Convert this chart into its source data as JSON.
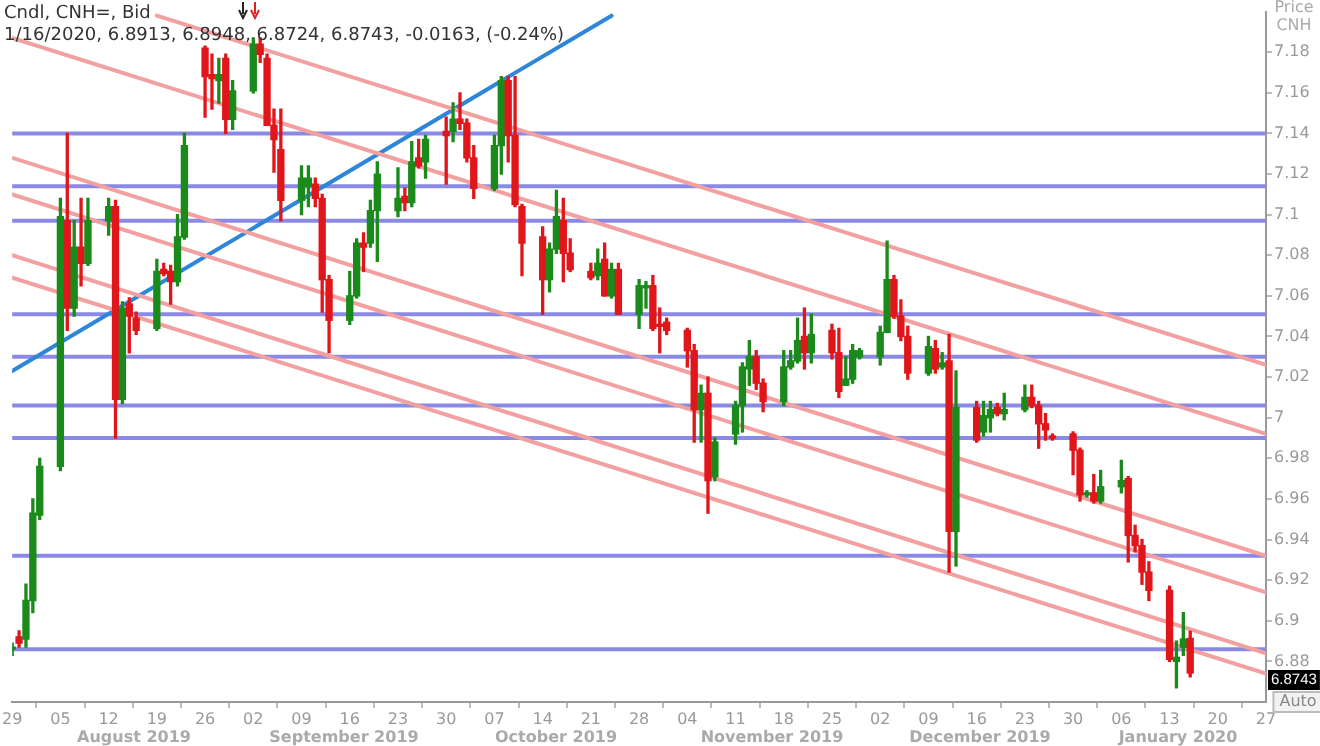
{
  "chart_data": {
    "type": "candlestick",
    "title": "Cndl, CNH=, Bid",
    "subtitle": "1/16/2020, 6.8913, 6.8948, 6.8724, 6.8743, -0.0163, (-0.24%)",
    "ylabel": "Price CNH",
    "x": [
      "2019-07-29",
      "2019-07-30",
      "2019-07-31",
      "2019-08-01",
      "2019-08-02",
      "2019-08-05",
      "2019-08-06",
      "2019-08-07",
      "2019-08-08",
      "2019-08-09",
      "2019-08-12",
      "2019-08-13",
      "2019-08-14",
      "2019-08-15",
      "2019-08-16",
      "2019-08-19",
      "2019-08-20",
      "2019-08-21",
      "2019-08-22",
      "2019-08-23",
      "2019-08-26",
      "2019-08-27",
      "2019-08-28",
      "2019-08-29",
      "2019-08-30",
      "2019-09-02",
      "2019-09-03",
      "2019-09-04",
      "2019-09-05",
      "2019-09-06",
      "2019-09-09",
      "2019-09-10",
      "2019-09-11",
      "2019-09-12",
      "2019-09-13",
      "2019-09-16",
      "2019-09-17",
      "2019-09-18",
      "2019-09-19",
      "2019-09-20",
      "2019-09-23",
      "2019-09-24",
      "2019-09-25",
      "2019-09-26",
      "2019-09-27",
      "2019-09-30",
      "2019-10-01",
      "2019-10-02",
      "2019-10-03",
      "2019-10-04",
      "2019-10-07",
      "2019-10-08",
      "2019-10-09",
      "2019-10-10",
      "2019-10-11",
      "2019-10-14",
      "2019-10-15",
      "2019-10-16",
      "2019-10-17",
      "2019-10-18",
      "2019-10-21",
      "2019-10-22",
      "2019-10-23",
      "2019-10-24",
      "2019-10-25",
      "2019-10-28",
      "2019-10-29",
      "2019-10-30",
      "2019-10-31",
      "2019-11-01",
      "2019-11-04",
      "2019-11-05",
      "2019-11-06",
      "2019-11-07",
      "2019-11-08",
      "2019-11-11",
      "2019-11-12",
      "2019-11-13",
      "2019-11-14",
      "2019-11-15",
      "2019-11-18",
      "2019-11-19",
      "2019-11-20",
      "2019-11-21",
      "2019-11-22",
      "2019-11-25",
      "2019-11-26",
      "2019-11-27",
      "2019-11-28",
      "2019-11-29",
      "2019-12-02",
      "2019-12-03",
      "2019-12-04",
      "2019-12-05",
      "2019-12-06",
      "2019-12-09",
      "2019-12-10",
      "2019-12-11",
      "2019-12-12",
      "2019-12-13",
      "2019-12-16",
      "2019-12-17",
      "2019-12-18",
      "2019-12-19",
      "2019-12-20",
      "2019-12-23",
      "2019-12-24",
      "2019-12-25",
      "2019-12-26",
      "2019-12-27",
      "2019-12-30",
      "2019-12-31",
      "2020-01-01",
      "2020-01-02",
      "2020-01-03",
      "2020-01-06",
      "2020-01-07",
      "2020-01-08",
      "2020-01-09",
      "2020-01-10",
      "2020-01-13",
      "2020-01-14",
      "2020-01-15",
      "2020-01-16"
    ],
    "ohlc": [
      [
        6.886,
        6.889,
        6.883,
        6.887
      ],
      [
        6.892,
        6.895,
        6.887,
        6.889
      ],
      [
        6.891,
        6.918,
        6.887,
        6.91
      ],
      [
        6.91,
        6.96,
        6.904,
        6.953
      ],
      [
        6.952,
        6.98,
        6.95,
        6.976
      ],
      [
        6.976,
        7.108,
        6.974,
        7.099
      ],
      [
        7.097,
        7.14,
        7.043,
        7.054
      ],
      [
        7.054,
        7.097,
        7.05,
        7.084
      ],
      [
        7.084,
        7.108,
        7.065,
        7.076
      ],
      [
        7.076,
        7.108,
        7.075,
        7.097
      ],
      [
        7.097,
        7.108,
        7.09,
        7.104
      ],
      [
        7.104,
        7.107,
        6.99,
        7.009
      ],
      [
        7.009,
        7.057,
        7.007,
        7.054
      ],
      [
        7.056,
        7.059,
        7.032,
        7.05
      ],
      [
        7.049,
        7.052,
        7.041,
        7.043
      ],
      [
        7.044,
        7.078,
        7.043,
        7.072
      ],
      [
        7.073,
        7.076,
        7.07,
        7.071
      ],
      [
        7.072,
        7.075,
        7.056,
        7.067
      ],
      [
        7.067,
        7.1,
        7.065,
        7.089
      ],
      [
        7.089,
        7.14,
        7.088,
        7.134
      ],
      [
        7.182,
        7.183,
        7.148,
        7.168
      ],
      [
        7.169,
        7.179,
        7.152,
        7.167
      ],
      [
        7.166,
        7.177,
        7.155,
        7.169
      ],
      [
        7.177,
        7.179,
        7.14,
        7.147
      ],
      [
        7.147,
        7.166,
        7.142,
        7.161
      ],
      [
        7.161,
        7.187,
        7.16,
        7.184
      ],
      [
        7.184,
        7.187,
        7.175,
        7.179
      ],
      [
        7.177,
        7.179,
        7.144,
        7.144
      ],
      [
        7.144,
        7.152,
        7.121,
        7.137
      ],
      [
        7.132,
        7.152,
        7.097,
        7.107
      ],
      [
        7.107,
        7.124,
        7.1,
        7.118
      ],
      [
        7.114,
        7.124,
        7.104,
        7.118
      ],
      [
        7.115,
        7.118,
        7.104,
        7.108
      ],
      [
        7.108,
        7.11,
        7.052,
        7.068
      ],
      [
        7.068,
        7.07,
        7.032,
        7.048
      ],
      [
        7.048,
        7.072,
        7.046,
        7.06
      ],
      [
        7.06,
        7.088,
        7.059,
        7.086
      ],
      [
        7.086,
        7.091,
        7.072,
        7.084
      ],
      [
        7.086,
        7.107,
        7.084,
        7.102
      ],
      [
        7.102,
        7.126,
        7.077,
        7.12
      ],
      [
        7.102,
        7.123,
        7.099,
        7.108
      ],
      [
        7.109,
        7.113,
        7.102,
        7.106
      ],
      [
        7.106,
        7.136,
        7.104,
        7.126
      ],
      [
        7.128,
        7.137,
        7.123,
        7.124
      ],
      [
        7.126,
        7.139,
        7.118,
        7.137
      ],
      [
        7.141,
        7.148,
        7.115,
        7.139
      ],
      [
        7.141,
        7.155,
        7.136,
        7.147
      ],
      [
        7.147,
        7.16,
        7.142,
        7.145
      ],
      [
        7.145,
        7.147,
        7.126,
        7.128
      ],
      [
        7.128,
        7.134,
        7.108,
        7.113
      ],
      [
        7.113,
        7.139,
        7.112,
        7.134
      ],
      [
        7.134,
        7.168,
        7.12,
        7.166
      ],
      [
        7.166,
        7.168,
        7.126,
        7.139
      ],
      [
        7.139,
        7.168,
        7.104,
        7.105
      ],
      [
        7.104,
        7.105,
        7.07,
        7.086
      ],
      [
        7.089,
        7.094,
        7.051,
        7.068
      ],
      [
        7.068,
        7.086,
        7.062,
        7.083
      ],
      [
        7.083,
        7.112,
        7.081,
        7.099
      ],
      [
        7.097,
        7.108,
        7.067,
        7.081
      ],
      [
        7.081,
        7.088,
        7.072,
        7.073
      ],
      [
        7.072,
        7.076,
        7.068,
        7.069
      ],
      [
        7.07,
        7.083,
        7.068,
        7.076
      ],
      [
        7.078,
        7.086,
        7.06,
        7.06
      ],
      [
        7.06,
        7.076,
        7.059,
        7.073
      ],
      [
        7.073,
        7.076,
        7.051,
        7.051
      ],
      [
        7.051,
        7.068,
        7.044,
        7.065
      ],
      [
        7.064,
        7.067,
        7.054,
        7.065
      ],
      [
        7.065,
        7.07,
        7.043,
        7.044
      ],
      [
        7.046,
        7.054,
        7.032,
        7.045
      ],
      [
        7.047,
        7.049,
        7.041,
        7.043
      ],
      [
        7.043,
        7.044,
        7.025,
        7.033
      ],
      [
        7.033,
        7.036,
        6.988,
        7.004
      ],
      [
        7.004,
        7.016,
        6.988,
        7.012
      ],
      [
        7.012,
        7.02,
        6.953,
        6.969
      ],
      [
        6.971,
        6.99,
        6.969,
        6.988
      ],
      [
        6.992,
        7.008,
        6.987,
        7.006
      ],
      [
        7.006,
        7.027,
        6.993,
        7.025
      ],
      [
        7.024,
        7.038,
        7.016,
        7.03
      ],
      [
        7.03,
        7.033,
        7.014,
        7.017
      ],
      [
        7.017,
        7.019,
        7.003,
        7.008
      ],
      [
        7.008,
        7.033,
        7.006,
        7.025
      ],
      [
        7.025,
        7.033,
        7.024,
        7.028
      ],
      [
        7.028,
        7.049,
        7.027,
        7.038
      ],
      [
        7.04,
        7.054,
        7.024,
        7.032
      ],
      [
        7.032,
        7.051,
        7.027,
        7.041
      ],
      [
        7.043,
        7.046,
        7.029,
        7.032
      ],
      [
        7.032,
        7.044,
        7.01,
        7.013
      ],
      [
        7.016,
        7.03,
        7.016,
        7.019
      ],
      [
        7.019,
        7.036,
        7.017,
        7.033
      ],
      [
        7.03,
        7.034,
        7.029,
        7.033
      ],
      [
        7.03,
        7.045,
        7.026,
        7.042
      ],
      [
        7.042,
        7.087,
        7.042,
        7.068
      ],
      [
        7.068,
        7.07,
        7.049,
        7.05
      ],
      [
        7.05,
        7.058,
        7.038,
        7.04
      ],
      [
        7.04,
        7.045,
        7.019,
        7.022
      ],
      [
        7.022,
        7.04,
        7.021,
        7.035
      ],
      [
        7.034,
        7.038,
        7.022,
        7.024
      ],
      [
        7.025,
        7.032,
        7.024,
        7.027
      ],
      [
        7.028,
        7.041,
        6.924,
        6.944
      ],
      [
        6.944,
        7.023,
        6.927,
        7.005
      ],
      [
        7.005,
        7.008,
        6.988,
        6.989
      ],
      [
        6.993,
        7.008,
        6.991,
        7.001
      ],
      [
        7.0,
        7.008,
        6.993,
        7.004
      ],
      [
        7.005,
        7.007,
        7.001,
        7.002
      ],
      [
        7.002,
        7.012,
        6.999,
        7.004
      ],
      [
        7.004,
        7.016,
        7.003,
        7.01
      ],
      [
        7.01,
        7.016,
        7.005,
        7.006
      ],
      [
        7.006,
        7.008,
        6.985,
        6.997
      ],
      [
        6.997,
        7.002,
        6.989,
        6.994
      ],
      [
        6.991,
        6.992,
        6.989,
        6.99
      ],
      [
        6.992,
        6.993,
        6.972,
        6.984
      ],
      [
        6.984,
        6.985,
        6.959,
        6.962
      ],
      [
        6.962,
        6.964,
        6.961,
        6.963
      ],
      [
        6.963,
        6.972,
        6.958,
        6.959
      ],
      [
        6.959,
        6.974,
        6.958,
        6.966
      ],
      [
        6.966,
        6.979,
        6.963,
        6.969
      ],
      [
        6.97,
        6.971,
        6.929,
        6.942
      ],
      [
        6.942,
        6.947,
        6.934,
        6.937
      ],
      [
        6.937,
        6.94,
        6.918,
        6.924
      ],
      [
        6.924,
        6.929,
        6.91,
        6.915
      ],
      [
        6.915,
        6.917,
        6.88,
        6.881
      ],
      [
        6.88,
        6.89,
        6.867,
        6.882
      ],
      [
        6.887,
        6.904,
        6.883,
        6.891
      ],
      [
        6.8913,
        6.8948,
        6.8724,
        6.8743
      ]
    ],
    "colors": [
      "#1a8a1a",
      "#e0161b",
      "#1a8a1a",
      "#1a8a1a",
      "#1a8a1a",
      "#1a8a1a",
      "#e0161b",
      "#1a8a1a",
      "#e0161b",
      "#1a8a1a",
      "#1a8a1a",
      "#e0161b",
      "#1a8a1a",
      "#e0161b",
      "#e0161b",
      "#1a8a1a",
      "#e0161b",
      "#e0161b",
      "#1a8a1a",
      "#1a8a1a",
      "#e0161b",
      "#e0161b",
      "#1a8a1a",
      "#e0161b",
      "#1a8a1a",
      "#1a8a1a",
      "#e0161b",
      "#e0161b",
      "#e0161b",
      "#e0161b",
      "#1a8a1a",
      "#1a8a1a",
      "#e0161b",
      "#e0161b",
      "#e0161b",
      "#1a8a1a",
      "#1a8a1a",
      "#e0161b",
      "#1a8a1a",
      "#1a8a1a",
      "#1a8a1a",
      "#e0161b",
      "#1a8a1a",
      "#e0161b",
      "#1a8a1a",
      "#e0161b",
      "#1a8a1a",
      "#e0161b",
      "#e0161b",
      "#e0161b",
      "#1a8a1a",
      "#1a8a1a",
      "#e0161b",
      "#e0161b",
      "#e0161b",
      "#e0161b",
      "#1a8a1a",
      "#1a8a1a",
      "#e0161b",
      "#e0161b",
      "#e0161b",
      "#1a8a1a",
      "#e0161b",
      "#1a8a1a",
      "#e0161b",
      "#1a8a1a",
      "#1a8a1a",
      "#e0161b",
      "#e0161b",
      "#e0161b",
      "#e0161b",
      "#e0161b",
      "#1a8a1a",
      "#e0161b",
      "#1a8a1a",
      "#1a8a1a",
      "#1a8a1a",
      "#1a8a1a",
      "#e0161b",
      "#e0161b",
      "#1a8a1a",
      "#1a8a1a",
      "#1a8a1a",
      "#e0161b",
      "#1a8a1a",
      "#e0161b",
      "#e0161b",
      "#1a8a1a",
      "#1a8a1a",
      "#1a8a1a",
      "#1a8a1a",
      "#1a8a1a",
      "#e0161b",
      "#e0161b",
      "#e0161b",
      "#1a8a1a",
      "#e0161b",
      "#1a8a1a",
      "#e0161b",
      "#1a8a1a",
      "#e0161b",
      "#1a8a1a",
      "#1a8a1a",
      "#e0161b",
      "#1a8a1a",
      "#1a8a1a",
      "#e0161b",
      "#e0161b",
      "#e0161b",
      "#e0161b",
      "#e0161b",
      "#e0161b",
      "#1a8a1a",
      "#e0161b",
      "#1a8a1a",
      "#1a8a1a",
      "#e0161b",
      "#e0161b",
      "#e0161b",
      "#e0161b",
      "#e0161b",
      "#1a8a1a",
      "#1a8a1a",
      "#e0161b"
    ],
    "series": [
      {
        "type": "line",
        "color": "#f2a0a0",
        "x": [
          "2019-08-19",
          "2020-01-27"
        ],
        "values": [
          7.198,
          7.026
        ]
      },
      {
        "type": "line",
        "color": "#f2a0a0",
        "x": [
          "2019-07-29",
          "2020-01-27"
        ],
        "values": [
          7.187,
          6.992
        ]
      },
      {
        "type": "line",
        "color": "#f2a0a0",
        "x": [
          "2019-07-29",
          "2020-01-27"
        ],
        "values": [
          7.128,
          6.932
        ]
      },
      {
        "type": "line",
        "color": "#f2a0a0",
        "x": [
          "2019-07-29",
          "2020-01-27"
        ],
        "values": [
          7.11,
          6.914
        ]
      },
      {
        "type": "line",
        "color": "#f2a0a0",
        "x": [
          "2019-07-29",
          "2020-01-27"
        ],
        "values": [
          7.08,
          6.884
        ]
      },
      {
        "type": "line",
        "color": "#f2a0a0",
        "x": [
          "2019-07-29",
          "2020-01-27"
        ],
        "values": [
          7.069,
          6.874
        ]
      },
      {
        "type": "line",
        "color": "#2d86d8",
        "x": [
          "2019-07-29",
          "2019-10-24"
        ],
        "values": [
          7.023,
          7.198
        ]
      }
    ],
    "ref_lines": [
      {
        "axis": "y",
        "value": 7.14,
        "color": "#8a8ae6"
      },
      {
        "axis": "y",
        "value": 7.114,
        "color": "#8a8ae6"
      },
      {
        "axis": "y",
        "value": 7.097,
        "color": "#8a8ae6"
      },
      {
        "axis": "y",
        "value": 7.051,
        "color": "#8a8ae6"
      },
      {
        "axis": "y",
        "value": 7.03,
        "color": "#8a8ae6"
      },
      {
        "axis": "y",
        "value": 7.006,
        "color": "#8a8ae6"
      },
      {
        "axis": "y",
        "value": 6.99,
        "color": "#8a8ae6"
      },
      {
        "axis": "y",
        "value": 6.932,
        "color": "#8a8ae6"
      },
      {
        "axis": "y",
        "value": 6.886,
        "color": "#8a8ae6"
      }
    ],
    "xlim": [
      "2019-07-29",
      "2020-01-27"
    ],
    "xticks": [
      {
        "value": "2019-07-29",
        "label": "29"
      },
      {
        "value": "2019-08-05",
        "label": "05"
      },
      {
        "value": "2019-08-12",
        "label": "12"
      },
      {
        "value": "2019-08-19",
        "label": "19"
      },
      {
        "value": "2019-08-26",
        "label": "26"
      },
      {
        "value": "2019-09-02",
        "label": "02"
      },
      {
        "value": "2019-09-09",
        "label": "09"
      },
      {
        "value": "2019-09-16",
        "label": "16"
      },
      {
        "value": "2019-09-23",
        "label": "23"
      },
      {
        "value": "2019-09-30",
        "label": "30"
      },
      {
        "value": "2019-10-07",
        "label": "07"
      },
      {
        "value": "2019-10-14",
        "label": "14"
      },
      {
        "value": "2019-10-21",
        "label": "21"
      },
      {
        "value": "2019-10-28",
        "label": "28"
      },
      {
        "value": "2019-11-04",
        "label": "04"
      },
      {
        "value": "2019-11-11",
        "label": "11"
      },
      {
        "value": "2019-11-18",
        "label": "18"
      },
      {
        "value": "2019-11-25",
        "label": "25"
      },
      {
        "value": "2019-12-02",
        "label": "02"
      },
      {
        "value": "2019-12-09",
        "label": "09"
      },
      {
        "value": "2019-12-16",
        "label": "16"
      },
      {
        "value": "2019-12-23",
        "label": "23"
      },
      {
        "value": "2019-12-30",
        "label": "30"
      },
      {
        "value": "2020-01-06",
        "label": "06"
      },
      {
        "value": "2020-01-13",
        "label": "13"
      },
      {
        "value": "2020-01-20",
        "label": "20"
      },
      {
        "value": "2020-01-27",
        "label": "27"
      }
    ],
    "ylim": [
      6.86,
      7.2
    ],
    "yticks": [
      6.88,
      6.9,
      6.92,
      6.94,
      6.96,
      6.98,
      7,
      7.02,
      7.04,
      7.06,
      7.08,
      7.1,
      7.12,
      7.14,
      7.16,
      7.18
    ],
    "annotations": [
      "August 2019",
      "September 2019",
      "October 2019",
      "November 2019",
      "December 2019",
      "January 2020",
      "Auto",
      "6.8743"
    ],
    "legend": false
  }
}
